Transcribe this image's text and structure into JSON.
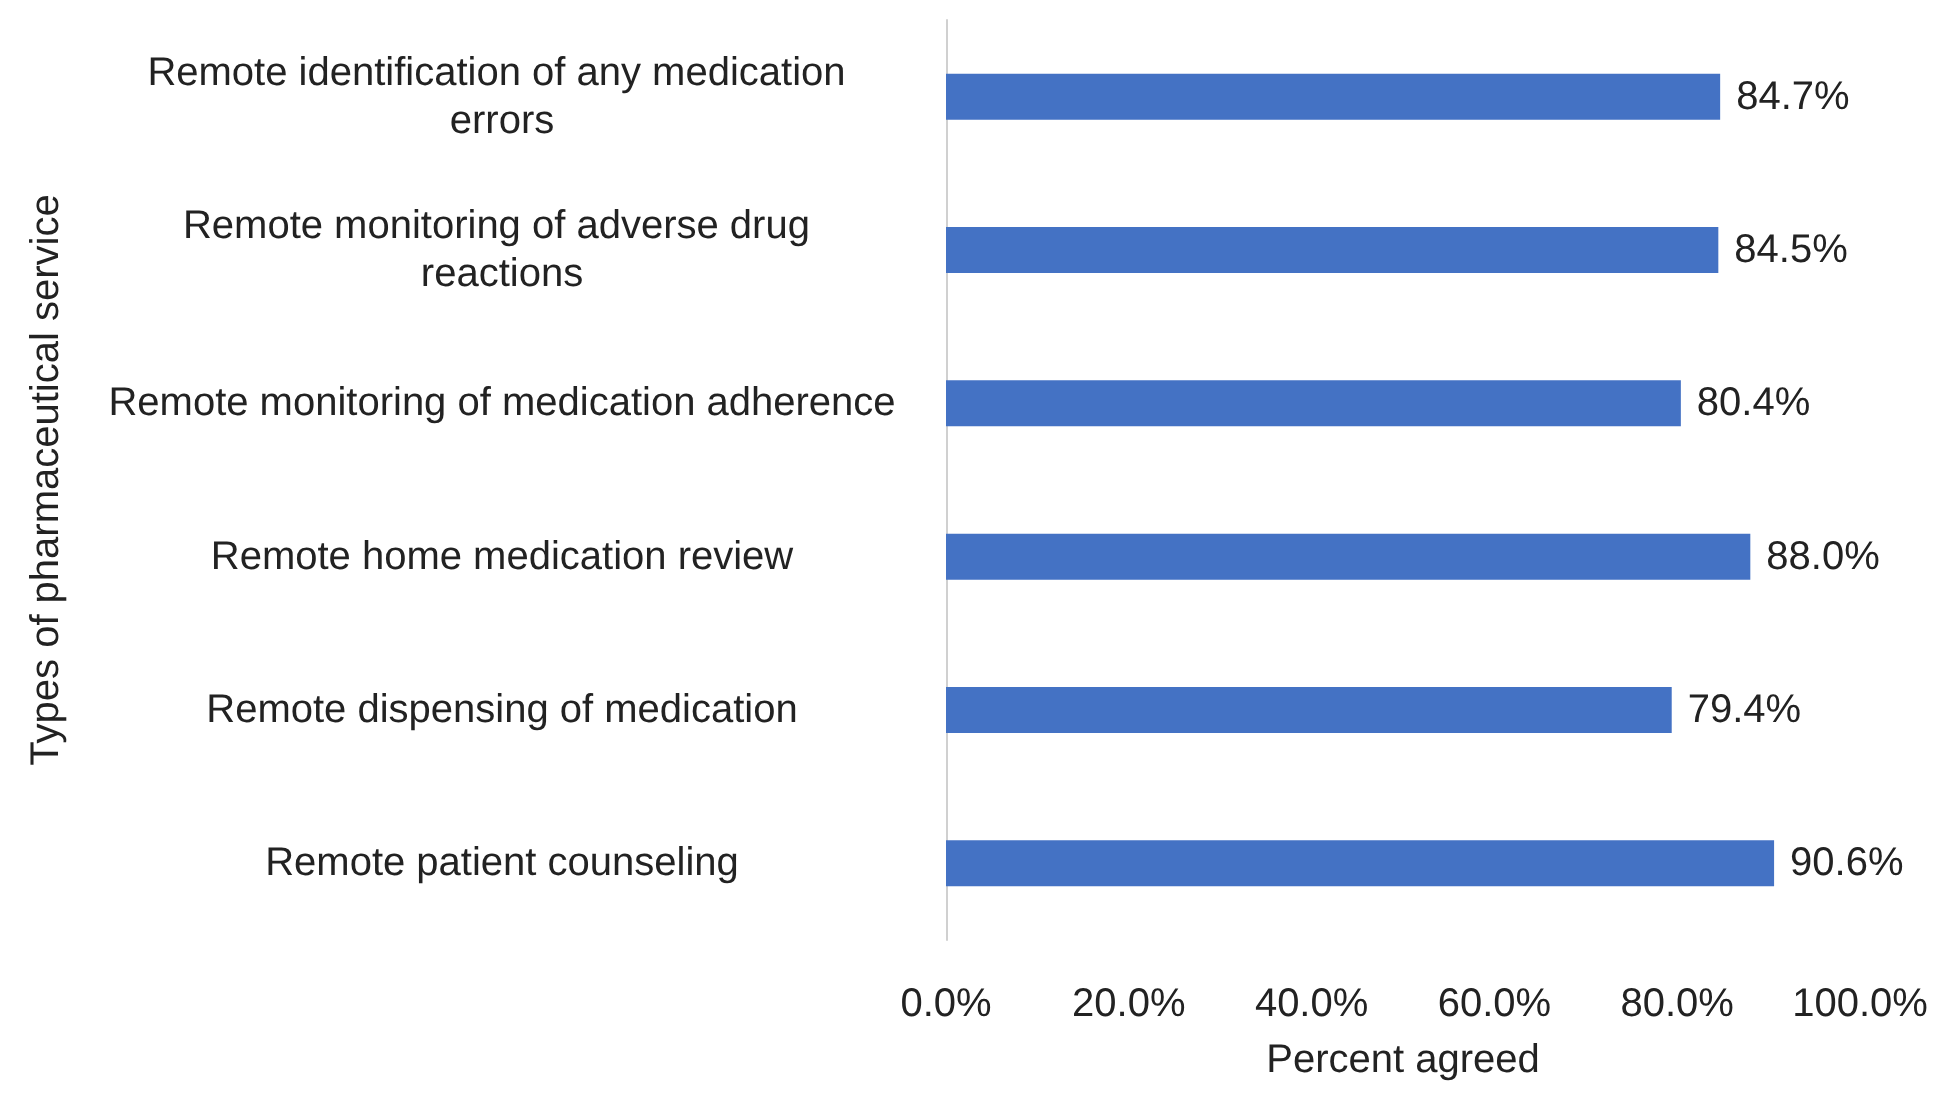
{
  "chart_data": {
    "type": "bar",
    "orientation": "horizontal",
    "xlabel": "Percent agreed",
    "ylabel": "Types of pharmaceutical service",
    "categories": [
      "Remote identification of any medication errors",
      "Remote monitoring of adverse drug reactions",
      "Remote monitoring of medication adherence",
      "Remote home medication review",
      "Remote dispensing of medication",
      "Remote patient counseling"
    ],
    "values": [
      84.7,
      84.5,
      80.4,
      88.0,
      79.4,
      90.6
    ],
    "value_labels": [
      "84.7%",
      "84.5%",
      "80.4%",
      "88.0%",
      "79.4%",
      "90.6%"
    ],
    "color": "#4472c4",
    "xlim": [
      0,
      100
    ],
    "xticks": [
      {
        "value": 0,
        "label": "0.0%"
      },
      {
        "value": 20,
        "label": "20.0%"
      },
      {
        "value": 40,
        "label": "40.0%"
      },
      {
        "value": 60,
        "label": "60.0%"
      },
      {
        "value": 80,
        "label": "80.0%"
      },
      {
        "value": 100,
        "label": "100.0%"
      }
    ]
  }
}
